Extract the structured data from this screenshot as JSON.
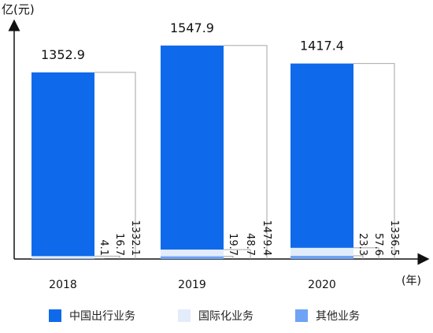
{
  "chart_data": {
    "type": "bar",
    "y_unit_label": "亿(元)",
    "x_unit_label": "(年)",
    "categories": [
      "2018",
      "2019",
      "2020"
    ],
    "totals": [
      1352.9,
      1547.9,
      1417.4
    ],
    "series": [
      {
        "name": "其他业务",
        "values": [
          4.1,
          19.7,
          23.3
        ],
        "color": "#6fa3f5"
      },
      {
        "name": "国际化业务",
        "values": [
          16.7,
          48.7,
          57.6
        ],
        "color": "#e2ecfb"
      },
      {
        "name": "中国出行业务",
        "values": [
          1332.1,
          1479.4,
          1336.5
        ],
        "color": "#0f6aeb"
      }
    ],
    "stack_order": "bottom-to-top",
    "legend_position": "bottom",
    "grid": false
  },
  "legend": [
    {
      "label": "中国出行业务",
      "color": "#0f6aeb"
    },
    {
      "label": "国际化业务",
      "color": "#e2ecfb"
    },
    {
      "label": "其他业务",
      "color": "#6fa3f5"
    }
  ]
}
